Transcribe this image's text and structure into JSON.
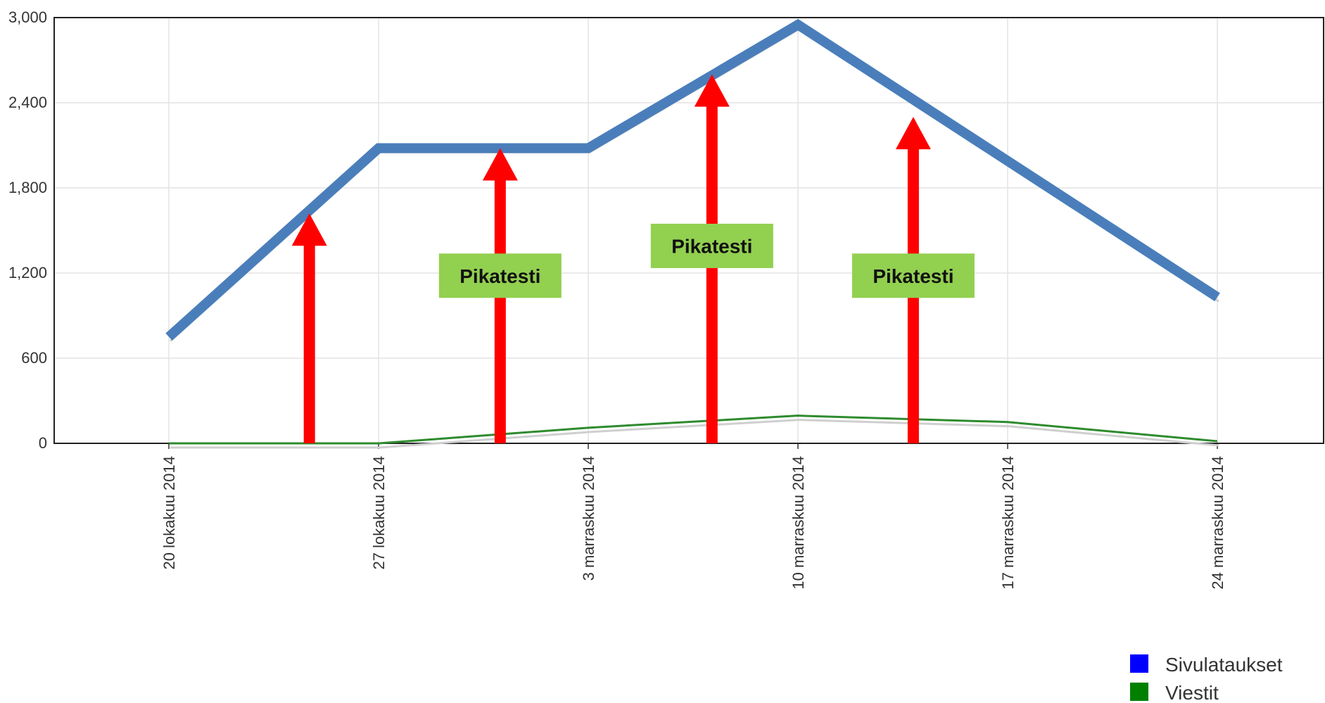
{
  "chart_data": {
    "type": "line",
    "x": [
      "20 lokakuu 2014",
      "27 lokakuu 2014",
      "3 marraskuu 2014",
      "10 marraskuu 2014",
      "17 marraskuu 2014",
      "24 marraskuu 2014"
    ],
    "y_ticks": [
      "0",
      "600",
      "1,200",
      "1,800",
      "2,400",
      "3,000"
    ],
    "ylim": [
      0,
      3000
    ],
    "grid": true,
    "legend_position": "bottom-right",
    "series": [
      {
        "name": "Sivulataukset",
        "color": "#0000ff",
        "line_color": "#4a7ebb",
        "points": [
          [
            "20 lokakuu 2014",
            750
          ],
          [
            "27 lokakuu 2014",
            2080
          ],
          [
            "3 marraskuu 2014",
            2080
          ],
          [
            "10 marraskuu 2014",
            2950
          ],
          [
            "24 marraskuu 2014",
            1030
          ]
        ]
      },
      {
        "name": "Viestit",
        "color": "#008000",
        "line_color": "#2e8b2e",
        "points": [
          [
            "20 lokakuu 2014",
            0
          ],
          [
            "27 lokakuu 2014",
            0
          ],
          [
            "3 marraskuu 2014",
            110
          ],
          [
            "10 marraskuu 2014",
            195
          ],
          [
            "17 marraskuu 2014",
            150
          ],
          [
            "24 marraskuu 2014",
            15
          ]
        ]
      }
    ],
    "annotations": [
      {
        "type": "arrow",
        "x": "23-24 lokakuu 2014",
        "y_top": 1620,
        "label": ""
      },
      {
        "type": "arrow",
        "x": "30-31 lokakuu 2014",
        "y_top": 2080,
        "label": "Pikatesti"
      },
      {
        "type": "arrow",
        "x": "6-7 marraskuu 2014",
        "y_top": 2600,
        "label": "Pikatesti"
      },
      {
        "type": "arrow",
        "x": "13-14 marraskuu 2014",
        "y_top": 2300,
        "label": "Pikatesti"
      }
    ],
    "arrow_color": "#ff0000",
    "label_bg_color": "#92d050"
  }
}
